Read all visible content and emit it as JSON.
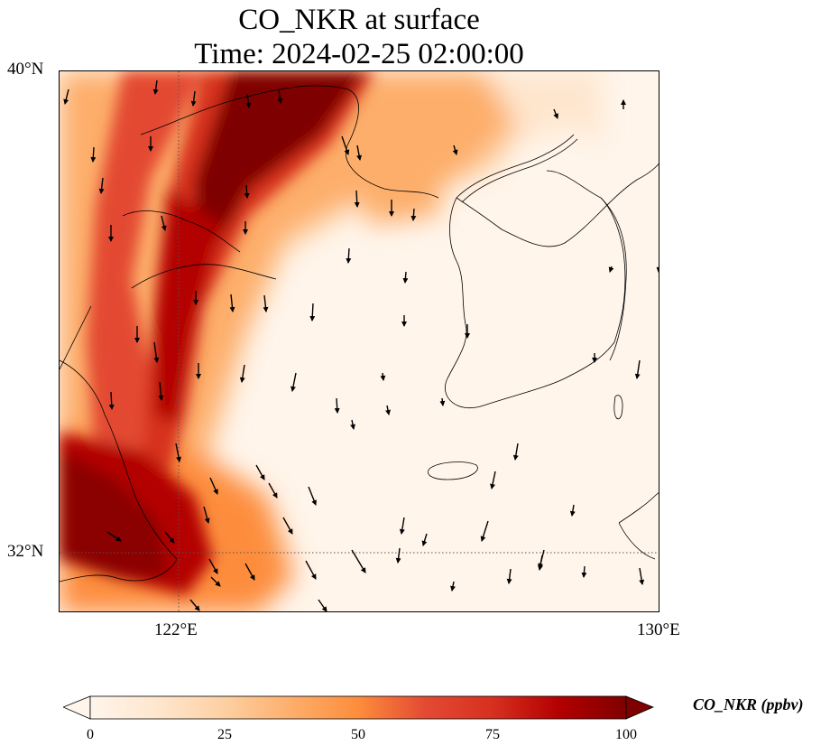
{
  "figure": {
    "title_line1": "CO_NKR at surface",
    "title_line2": "Time: 2024-02-25 02:00:00"
  },
  "map": {
    "projection": "lat-lon",
    "lat_range": [
      31.2,
      40.0
    ],
    "lon_range": [
      120.0,
      130.0
    ],
    "lat_ticks": [
      {
        "value": 40,
        "label": "40°N"
      },
      {
        "value": 32,
        "label": "32°N"
      }
    ],
    "lon_ticks": [
      {
        "value": 122,
        "label": "122°E"
      },
      {
        "value": 130,
        "label": "130°E"
      }
    ],
    "gridlines": "dotted at 122°E and 32°N",
    "field": "CO_NKR concentration (ppbv), high plume along the Chinese coast and Yellow Sea, low over Korea and East China Sea",
    "wind_vectors": "shown as black arrows, mostly pointing south to south-southeast"
  },
  "colorbar": {
    "label": "CO_NKR (ppbv)",
    "min": 0,
    "max": 100,
    "ticks": [
      "0",
      "25",
      "50",
      "75",
      "100"
    ],
    "colors": [
      "#fff5eb",
      "#fee6ce",
      "#fdd0a2",
      "#fdae6b",
      "#fd8d3c",
      "#f16913",
      "#d94801",
      "#a63603",
      "#7f0000"
    ],
    "extend": "both"
  }
}
